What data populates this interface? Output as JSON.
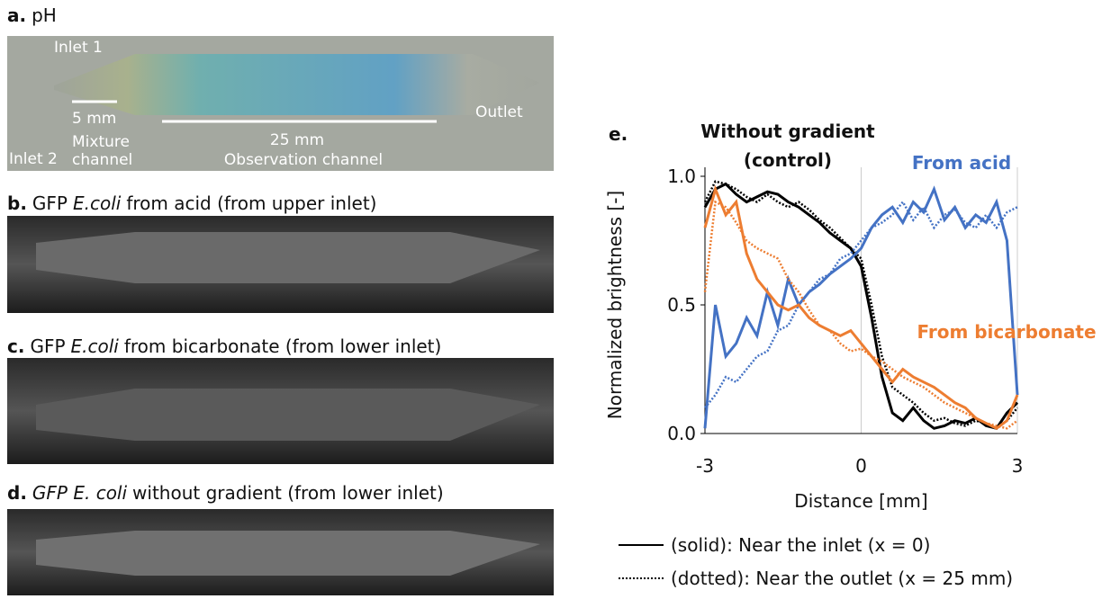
{
  "panels": [
    {
      "letter": "a.",
      "before": "pH"
    },
    {
      "letter": "b.",
      "before": "GFP",
      "italic": "E.coli",
      "after": "from acid (from upper inlet)"
    },
    {
      "letter": "c.",
      "before": "GFP",
      "italic": "E.coli",
      "after": "from bicarbonate (from lower inlet)"
    },
    {
      "letter": "d.",
      "italic": "GFP E. coli",
      "after": "without gradient (from lower inlet)"
    }
  ],
  "photo_a": {
    "inlet1": "Inlet 1",
    "inlet2": "Inlet 2",
    "mix_length": "5 mm",
    "mixture_channel": [
      "Mixture",
      "channel"
    ],
    "obs_length": "25 mm",
    "observation_channel": "Observation channel",
    "outlet": "Outlet"
  },
  "chart_data": {
    "type": "line",
    "panel_letter": "e.",
    "annotations": {
      "control": [
        "Without gradient",
        "(control)"
      ],
      "acid": "From acid",
      "bicarbonate": "From bicarbonate"
    },
    "xlabel": "Distance [mm]",
    "ylabel": "Normalized brightness [-]",
    "xlim": [
      -3,
      3
    ],
    "ylim": [
      0,
      1
    ],
    "xticks": [
      -3,
      0,
      3
    ],
    "yticks": [
      {
        "value": 0,
        "label": "0.0"
      },
      0.5,
      {
        "value": 1,
        "label": "1.0"
      }
    ],
    "x": [
      -3,
      -2.8,
      -2.6,
      -2.4,
      -2.2,
      -2,
      -1.8,
      -1.6,
      -1.4,
      -1.2,
      -1,
      -0.8,
      -0.6,
      -0.4,
      -0.2,
      0,
      0.2,
      0.4,
      0.6,
      0.8,
      1,
      1.2,
      1.4,
      1.6,
      1.8,
      2,
      2.2,
      2.4,
      2.6,
      2.8,
      3
    ],
    "series": [
      {
        "color": "#000000",
        "dash": "solid",
        "values": [
          0.88,
          0.95,
          0.97,
          0.93,
          0.9,
          0.92,
          0.94,
          0.93,
          0.9,
          0.88,
          0.85,
          0.82,
          0.78,
          0.75,
          0.72,
          0.65,
          0.45,
          0.22,
          0.08,
          0.05,
          0.1,
          0.05,
          0.02,
          0.03,
          0.05,
          0.04,
          0.06,
          0.03,
          0.02,
          0.08,
          0.12
        ]
      },
      {
        "color": "#000000",
        "dash": "dotted",
        "values": [
          0.9,
          0.98,
          0.97,
          0.95,
          0.92,
          0.9,
          0.93,
          0.9,
          0.88,
          0.9,
          0.87,
          0.83,
          0.8,
          0.76,
          0.72,
          0.68,
          0.5,
          0.3,
          0.18,
          0.15,
          0.12,
          0.08,
          0.05,
          0.06,
          0.04,
          0.03,
          0.05,
          0.04,
          0.02,
          0.05,
          0.1
        ]
      },
      {
        "color": "#4472c4",
        "dash": "solid",
        "values": [
          0.02,
          0.5,
          0.3,
          0.35,
          0.45,
          0.38,
          0.55,
          0.42,
          0.6,
          0.5,
          0.55,
          0.58,
          0.62,
          0.65,
          0.68,
          0.72,
          0.8,
          0.85,
          0.88,
          0.82,
          0.9,
          0.86,
          0.95,
          0.83,
          0.88,
          0.8,
          0.85,
          0.82,
          0.9,
          0.75,
          0.15
        ]
      },
      {
        "color": "#4472c4",
        "dash": "dotted",
        "values": [
          0.1,
          0.15,
          0.22,
          0.2,
          0.25,
          0.3,
          0.32,
          0.4,
          0.42,
          0.5,
          0.55,
          0.6,
          0.62,
          0.68,
          0.7,
          0.75,
          0.8,
          0.82,
          0.85,
          0.9,
          0.83,
          0.88,
          0.8,
          0.85,
          0.87,
          0.82,
          0.8,
          0.85,
          0.8,
          0.86,
          0.88
        ]
      },
      {
        "color": "#ed7d31",
        "dash": "solid",
        "values": [
          0.8,
          0.95,
          0.85,
          0.9,
          0.7,
          0.6,
          0.55,
          0.5,
          0.48,
          0.5,
          0.45,
          0.42,
          0.4,
          0.38,
          0.4,
          0.35,
          0.3,
          0.25,
          0.2,
          0.25,
          0.22,
          0.2,
          0.18,
          0.15,
          0.12,
          0.1,
          0.06,
          0.04,
          0.02,
          0.05,
          0.15
        ]
      },
      {
        "color": "#ed7d31",
        "dash": "dotted",
        "values": [
          0.55,
          0.9,
          0.88,
          0.82,
          0.75,
          0.72,
          0.7,
          0.68,
          0.6,
          0.55,
          0.48,
          0.42,
          0.4,
          0.35,
          0.32,
          0.33,
          0.3,
          0.28,
          0.25,
          0.22,
          0.2,
          0.18,
          0.15,
          0.12,
          0.1,
          0.08,
          0.06,
          0.04,
          0.03,
          0.02,
          0.05
        ]
      }
    ],
    "legend": [
      {
        "dash": "solid",
        "label": "(solid): Near the inlet (x = 0)"
      },
      {
        "dash": "dotted",
        "label": "(dotted): Near the outlet (x = 25 mm)"
      }
    ]
  }
}
